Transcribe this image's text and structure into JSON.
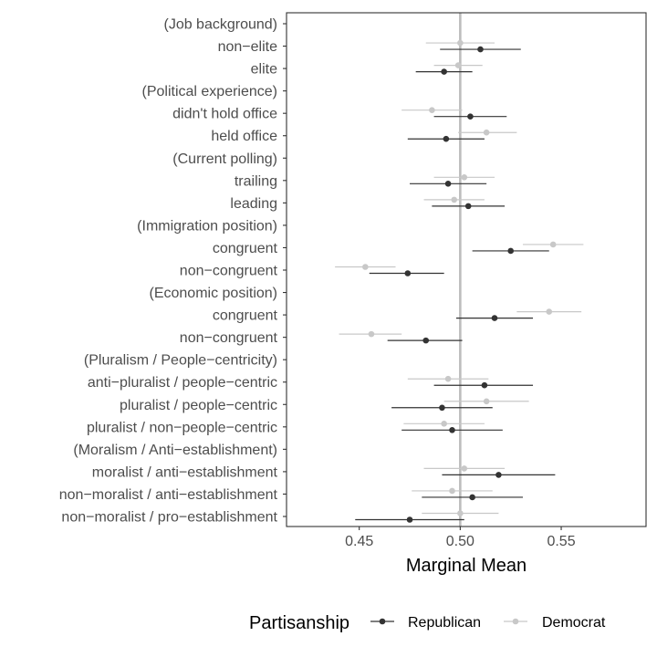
{
  "chart_data": {
    "type": "scatter",
    "title": "",
    "xlabel": "Marginal Mean",
    "ylabel": "",
    "xlim": [
      0.414,
      0.592
    ],
    "xticks": [
      0.45,
      0.5,
      0.55
    ],
    "xtick_labels": [
      "0.45",
      "0.50",
      "0.55"
    ],
    "reference_line": 0.5,
    "grid": false,
    "legend_position": "bottom",
    "legend_title": "Partisanship",
    "categories": [
      "(Job background)",
      "non−elite",
      "elite",
      "(Political experience)",
      "didn't hold office",
      "held office",
      "(Current polling)",
      "trailing",
      "leading",
      "(Immigration position)",
      "congruent ",
      "non−congruent ",
      "(Economic position)",
      "congruent",
      "non−congruent",
      "(Pluralism / People−centricity)",
      "anti−pluralist / people−centric",
      "pluralist / people−centric",
      "pluralist / non−people−centric",
      "(Moralism / Anti−establishment)",
      "moralist / anti−establishment",
      "non−moralist / anti−establishment",
      "non−moralist / pro−establishment"
    ],
    "series": [
      {
        "name": "Republican",
        "color": "#333333",
        "points": [
          null,
          {
            "est": 0.51,
            "lo": 0.49,
            "hi": 0.53
          },
          {
            "est": 0.492,
            "lo": 0.478,
            "hi": 0.506
          },
          null,
          {
            "est": 0.505,
            "lo": 0.487,
            "hi": 0.523
          },
          {
            "est": 0.493,
            "lo": 0.474,
            "hi": 0.512
          },
          null,
          {
            "est": 0.494,
            "lo": 0.475,
            "hi": 0.513
          },
          {
            "est": 0.504,
            "lo": 0.486,
            "hi": 0.522
          },
          null,
          {
            "est": 0.525,
            "lo": 0.506,
            "hi": 0.544
          },
          {
            "est": 0.474,
            "lo": 0.455,
            "hi": 0.492
          },
          null,
          {
            "est": 0.517,
            "lo": 0.498,
            "hi": 0.536
          },
          {
            "est": 0.483,
            "lo": 0.464,
            "hi": 0.501
          },
          null,
          {
            "est": 0.512,
            "lo": 0.487,
            "hi": 0.536
          },
          {
            "est": 0.491,
            "lo": 0.466,
            "hi": 0.516
          },
          {
            "est": 0.496,
            "lo": 0.471,
            "hi": 0.521
          },
          null,
          {
            "est": 0.519,
            "lo": 0.491,
            "hi": 0.547
          },
          {
            "est": 0.506,
            "lo": 0.481,
            "hi": 0.531
          },
          {
            "est": 0.475,
            "lo": 0.448,
            "hi": 0.502
          }
        ]
      },
      {
        "name": "Democrat",
        "color": "#c8c8c8",
        "points": [
          null,
          {
            "est": 0.5,
            "lo": 0.483,
            "hi": 0.517
          },
          {
            "est": 0.499,
            "lo": 0.487,
            "hi": 0.511
          },
          null,
          {
            "est": 0.486,
            "lo": 0.471,
            "hi": 0.501
          },
          {
            "est": 0.513,
            "lo": 0.499,
            "hi": 0.528
          },
          null,
          {
            "est": 0.502,
            "lo": 0.487,
            "hi": 0.517
          },
          {
            "est": 0.497,
            "lo": 0.482,
            "hi": 0.512
          },
          null,
          {
            "est": 0.546,
            "lo": 0.531,
            "hi": 0.561
          },
          {
            "est": 0.453,
            "lo": 0.438,
            "hi": 0.468
          },
          null,
          {
            "est": 0.544,
            "lo": 0.528,
            "hi": 0.56
          },
          {
            "est": 0.456,
            "lo": 0.44,
            "hi": 0.471
          },
          null,
          {
            "est": 0.494,
            "lo": 0.474,
            "hi": 0.514
          },
          {
            "est": 0.513,
            "lo": 0.492,
            "hi": 0.534
          },
          {
            "est": 0.492,
            "lo": 0.472,
            "hi": 0.512
          },
          null,
          {
            "est": 0.502,
            "lo": 0.482,
            "hi": 0.522
          },
          {
            "est": 0.496,
            "lo": 0.476,
            "hi": 0.516
          },
          {
            "est": 0.5,
            "lo": 0.481,
            "hi": 0.519
          }
        ]
      }
    ]
  }
}
